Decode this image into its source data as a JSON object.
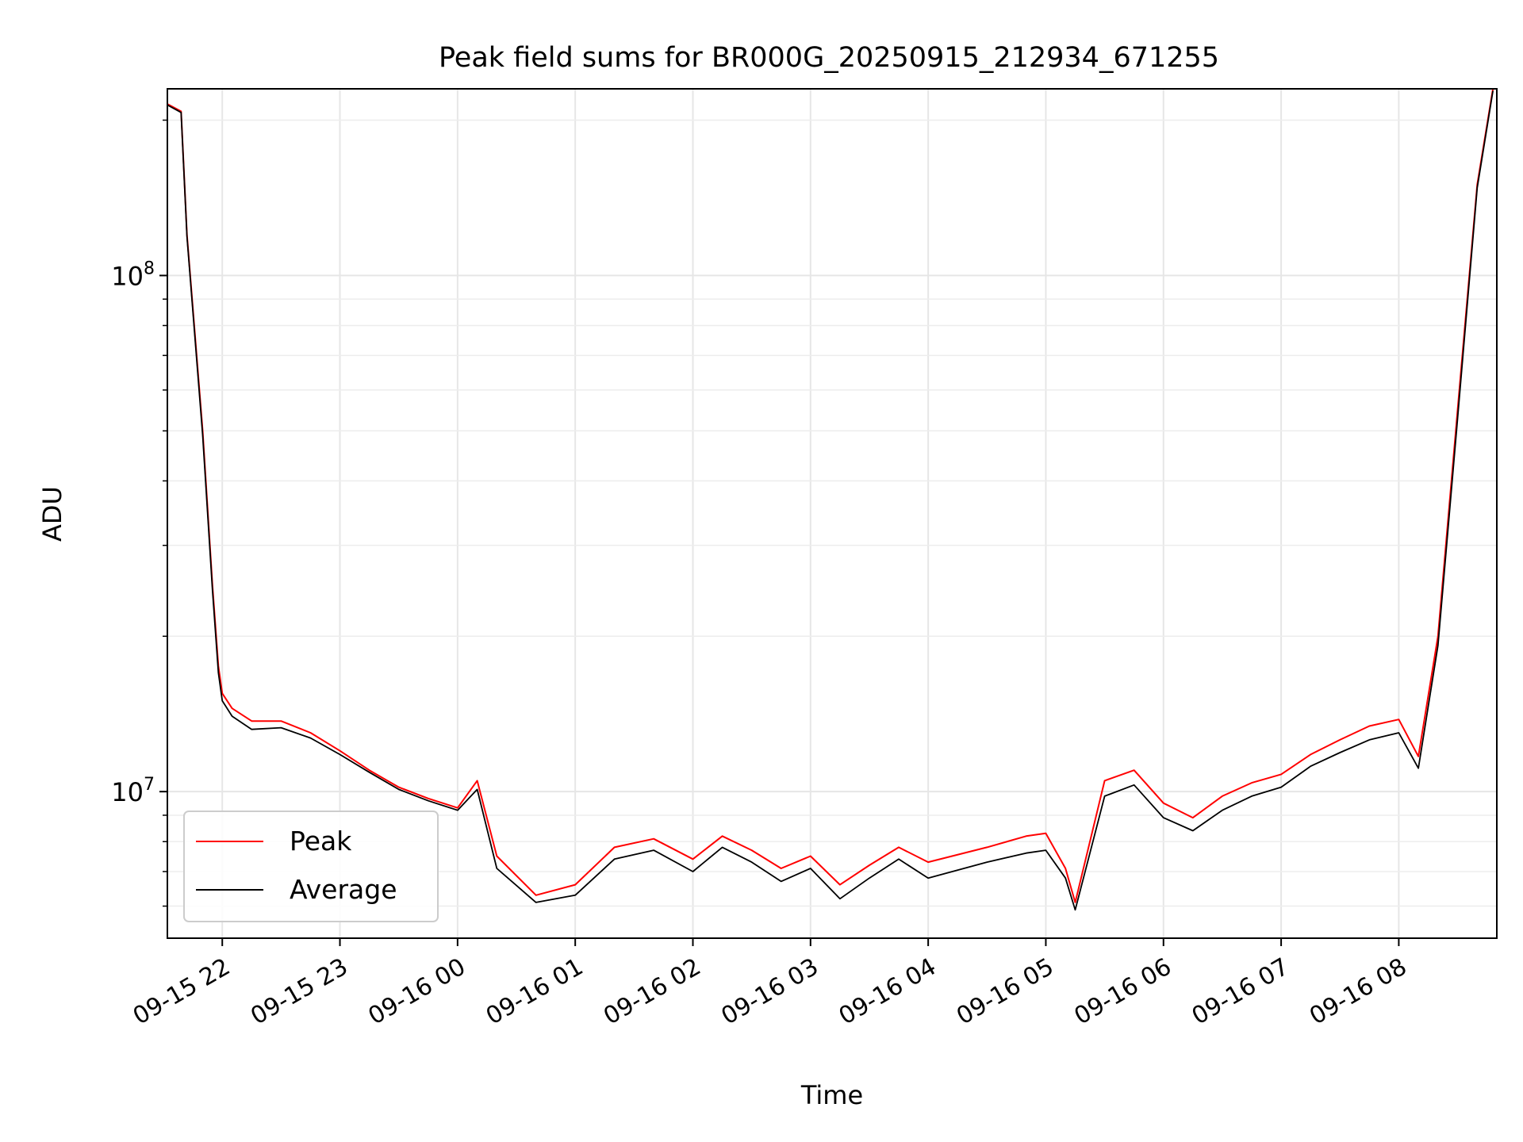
{
  "chart_data": {
    "type": "line",
    "title": "Peak field sums for BR000G_20250915_212934_671255",
    "xlabel": "Time",
    "ylabel": "ADU",
    "yscale": "log",
    "xlim": [
      "2025-09-15 21:32",
      "2025-09-16 08:50"
    ],
    "ylim": [
      5200000,
      230000000
    ],
    "grid": "on",
    "legend_position": "lower left",
    "x_tick_labels": [
      "09-15 22",
      "09-15 23",
      "09-16 00",
      "09-16 01",
      "09-16 02",
      "09-16 03",
      "09-16 04",
      "09-16 05",
      "09-16 06",
      "09-16 07",
      "09-16 08"
    ],
    "x_tick_values": [
      "2025-09-15 22:00",
      "2025-09-15 23:00",
      "2025-09-16 00:00",
      "2025-09-16 01:00",
      "2025-09-16 02:00",
      "2025-09-16 03:00",
      "2025-09-16 04:00",
      "2025-09-16 05:00",
      "2025-09-16 06:00",
      "2025-09-16 07:00",
      "2025-09-16 08:00"
    ],
    "y_tick_labels": [
      {
        "value": 10000000,
        "base": "10",
        "exp": "7"
      },
      {
        "value": 100000000,
        "base": "10",
        "exp": "8"
      }
    ],
    "x": [
      "2025-09-15 21:32",
      "2025-09-15 21:39",
      "2025-09-15 21:42",
      "2025-09-15 21:50",
      "2025-09-15 21:55",
      "2025-09-15 21:58",
      "2025-09-15 22:00",
      "2025-09-15 22:05",
      "2025-09-15 22:15",
      "2025-09-15 22:30",
      "2025-09-15 22:45",
      "2025-09-15 23:00",
      "2025-09-15 23:15",
      "2025-09-15 23:30",
      "2025-09-15 23:45",
      "2025-09-16 00:00",
      "2025-09-16 00:10",
      "2025-09-16 00:20",
      "2025-09-16 00:40",
      "2025-09-16 01:00",
      "2025-09-16 01:20",
      "2025-09-16 01:40",
      "2025-09-16 02:00",
      "2025-09-16 02:15",
      "2025-09-16 02:30",
      "2025-09-16 02:45",
      "2025-09-16 03:00",
      "2025-09-16 03:15",
      "2025-09-16 03:30",
      "2025-09-16 03:45",
      "2025-09-16 04:00",
      "2025-09-16 04:30",
      "2025-09-16 04:50",
      "2025-09-16 05:00",
      "2025-09-16 05:10",
      "2025-09-16 05:15",
      "2025-09-16 05:30",
      "2025-09-16 05:45",
      "2025-09-16 06:00",
      "2025-09-16 06:15",
      "2025-09-16 06:30",
      "2025-09-16 06:45",
      "2025-09-16 07:00",
      "2025-09-16 07:15",
      "2025-09-16 07:30",
      "2025-09-16 07:45",
      "2025-09-16 08:00",
      "2025-09-16 08:10",
      "2025-09-16 08:20",
      "2025-09-16 08:30",
      "2025-09-16 08:40",
      "2025-09-16 08:48"
    ],
    "series": [
      {
        "name": "Peak",
        "color": "#ff0000",
        "values": [
          215000000,
          208000000,
          120000000,
          50000000,
          25000000,
          17500000,
          15500000,
          14500000,
          13700000,
          13700000,
          13000000,
          12000000,
          11000000,
          10200000,
          9700000,
          9300000,
          10500000,
          7500000,
          6300000,
          6600000,
          7800000,
          8100000,
          7400000,
          8200000,
          7700000,
          7100000,
          7500000,
          6600000,
          7200000,
          7800000,
          7300000,
          7800000,
          8200000,
          8300000,
          7100000,
          6100000,
          10500000,
          11000000,
          9500000,
          8900000,
          9800000,
          10400000,
          10800000,
          11800000,
          12600000,
          13400000,
          13800000,
          11700000,
          20000000,
          55000000,
          150000000,
          230000000
        ]
      },
      {
        "name": "Average",
        "color": "#000000",
        "values": [
          214000000,
          207000000,
          119000000,
          49000000,
          24500000,
          17000000,
          15000000,
          14000000,
          13200000,
          13300000,
          12700000,
          11800000,
          10900000,
          10100000,
          9600000,
          9200000,
          10100000,
          7100000,
          6100000,
          6300000,
          7400000,
          7700000,
          7000000,
          7800000,
          7300000,
          6700000,
          7100000,
          6200000,
          6800000,
          7400000,
          6800000,
          7300000,
          7600000,
          7700000,
          6800000,
          5900000,
          9800000,
          10300000,
          8900000,
          8400000,
          9200000,
          9800000,
          10200000,
          11200000,
          11900000,
          12600000,
          13000000,
          11100000,
          19200000,
          53000000,
          148000000,
          228000000
        ]
      }
    ]
  }
}
